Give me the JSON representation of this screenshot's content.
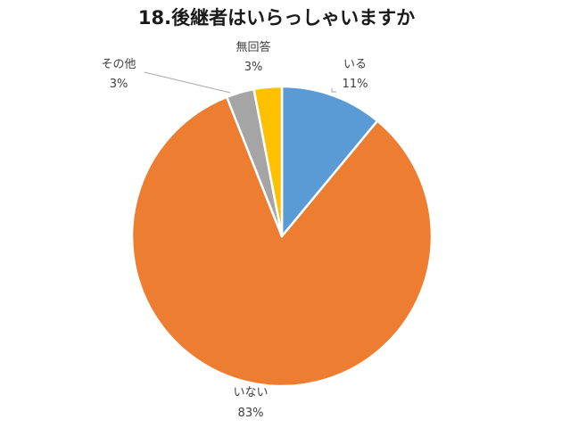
{
  "chart_data": {
    "type": "pie",
    "title": "18.後継者はいらっしゃいますか",
    "slices": [
      {
        "label": "いる",
        "value": 11,
        "value_label": "11%",
        "color": "#5B9BD5"
      },
      {
        "label": "いない",
        "value": 83,
        "value_label": "83%",
        "color": "#ED7D31"
      },
      {
        "label": "その他",
        "value": 3,
        "value_label": "3%",
        "color": "#A5A5A5"
      },
      {
        "label": "無回答",
        "value": 3,
        "value_label": "3%",
        "color": "#FFC000"
      }
    ],
    "start": "12 o'clock",
    "direction": "clockwise",
    "slice_border": "#ffffff",
    "leader_line_color": "#a6a6a6"
  }
}
